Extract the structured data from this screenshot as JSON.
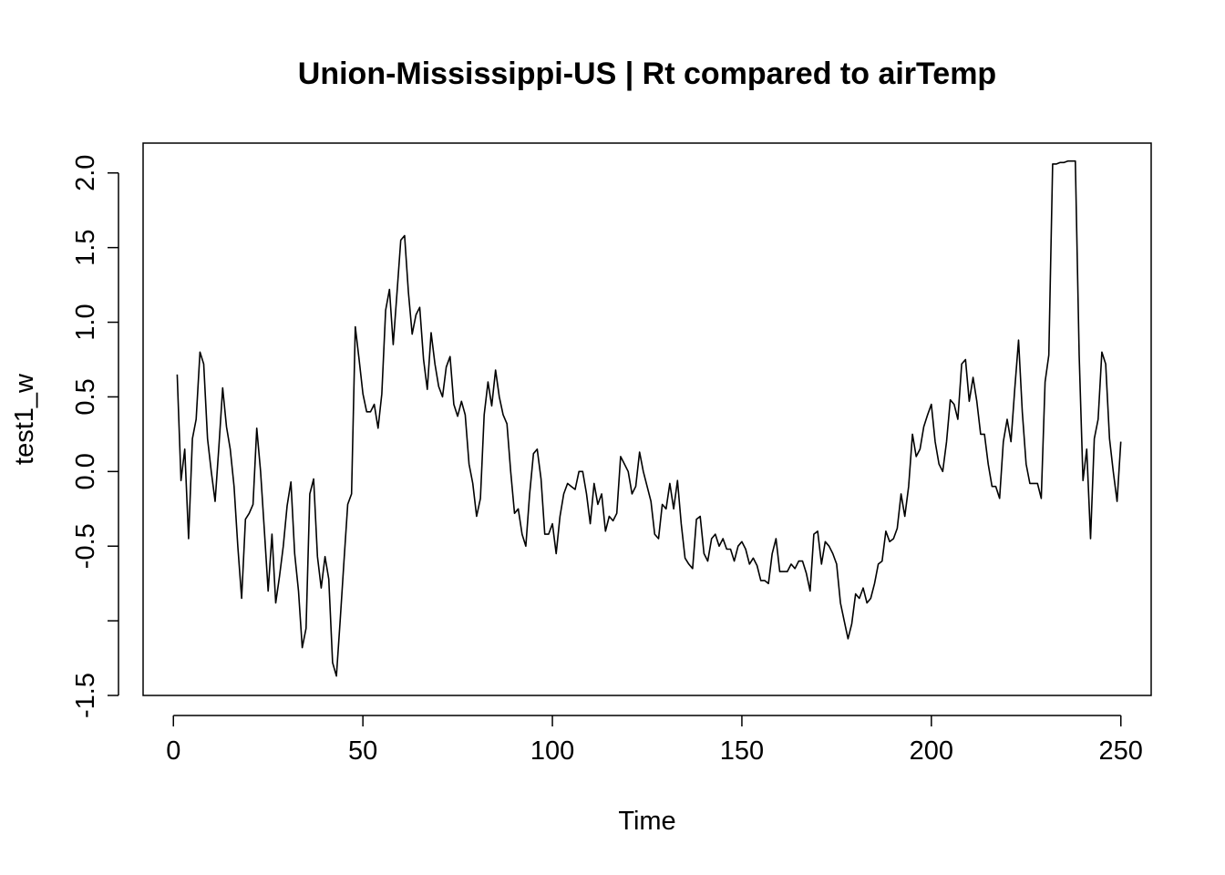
{
  "chart_data": {
    "type": "line",
    "title": "Union-Mississippi-US | Rt compared to airTemp",
    "xlabel": "Time",
    "ylabel": "test1_w",
    "xlim": [
      -8,
      258
    ],
    "ylim": [
      -1.5,
      2.2
    ],
    "x_ticks": [
      0,
      50,
      100,
      150,
      200,
      250
    ],
    "y_ticks": [
      -1.5,
      -1.0,
      -0.5,
      0.0,
      0.5,
      1.0,
      1.5,
      2.0
    ],
    "x_tick_labels": [
      "0",
      "50",
      "100",
      "150",
      "200",
      "250"
    ],
    "y_tick_labels": [
      "-1.5",
      "",
      "-0.5",
      "0.0",
      "0.5",
      "1.0",
      "1.5",
      "2.0"
    ],
    "grid": false,
    "series": [
      {
        "color": "#000000",
        "x_start": 1,
        "values": [
          0.65,
          -0.06,
          0.15,
          -0.45,
          0.22,
          0.35,
          0.8,
          0.72,
          0.22,
          0.0,
          -0.2,
          0.17,
          0.56,
          0.3,
          0.15,
          -0.1,
          -0.5,
          -0.85,
          -0.32,
          -0.28,
          -0.22,
          0.29,
          0.0,
          -0.4,
          -0.8,
          -0.42,
          -0.88,
          -0.7,
          -0.5,
          -0.23,
          -0.07,
          -0.55,
          -0.8,
          -1.18,
          -1.05,
          -0.15,
          -0.05,
          -0.57,
          -0.78,
          -0.57,
          -0.72,
          -1.28,
          -1.37,
          -1.0,
          -0.6,
          -0.22,
          -0.15,
          0.97,
          0.75,
          0.52,
          0.4,
          0.4,
          0.45,
          0.29,
          0.52,
          1.08,
          1.22,
          0.85,
          1.2,
          1.55,
          1.58,
          1.2,
          0.92,
          1.05,
          1.1,
          0.75,
          0.55,
          0.93,
          0.72,
          0.57,
          0.5,
          0.7,
          0.77,
          0.45,
          0.37,
          0.47,
          0.38,
          0.05,
          -0.08,
          -0.3,
          -0.18,
          0.38,
          0.6,
          0.44,
          0.68,
          0.5,
          0.38,
          0.32,
          0.0,
          -0.28,
          -0.25,
          -0.42,
          -0.5,
          -0.15,
          0.12,
          0.15,
          -0.05,
          -0.42,
          -0.42,
          -0.35,
          -0.55,
          -0.3,
          -0.15,
          -0.08,
          -0.1,
          -0.12,
          0.0,
          0.0,
          -0.15,
          -0.35,
          -0.08,
          -0.22,
          -0.15,
          -0.4,
          -0.3,
          -0.33,
          -0.28,
          0.1,
          0.05,
          0.0,
          -0.15,
          -0.1,
          0.13,
          0.0,
          -0.1,
          -0.2,
          -0.42,
          -0.45,
          -0.22,
          -0.25,
          -0.08,
          -0.25,
          -0.06,
          -0.35,
          -0.58,
          -0.62,
          -0.65,
          -0.32,
          -0.3,
          -0.55,
          -0.6,
          -0.45,
          -0.42,
          -0.5,
          -0.45,
          -0.52,
          -0.52,
          -0.6,
          -0.5,
          -0.47,
          -0.52,
          -0.62,
          -0.58,
          -0.63,
          -0.73,
          -0.73,
          -0.75,
          -0.55,
          -0.45,
          -0.67,
          -0.67,
          -0.67,
          -0.62,
          -0.65,
          -0.6,
          -0.6,
          -0.68,
          -0.8,
          -0.42,
          -0.4,
          -0.62,
          -0.47,
          -0.5,
          -0.55,
          -0.62,
          -0.88,
          -1.0,
          -1.12,
          -1.02,
          -0.82,
          -0.85,
          -0.78,
          -0.88,
          -0.85,
          -0.75,
          -0.62,
          -0.6,
          -0.4,
          -0.47,
          -0.45,
          -0.38,
          -0.15,
          -0.3,
          -0.1,
          0.25,
          0.1,
          0.15,
          0.3,
          0.38,
          0.45,
          0.2,
          0.05,
          0.0,
          0.2,
          0.48,
          0.45,
          0.35,
          0.72,
          0.75,
          0.47,
          0.63,
          0.47,
          0.25,
          0.25,
          0.05,
          -0.1,
          -0.1,
          -0.18,
          0.2,
          0.35,
          0.2,
          0.55,
          0.88,
          0.4,
          0.05,
          -0.08,
          -0.08,
          -0.08,
          -0.18,
          0.6,
          0.78,
          2.06,
          2.06,
          2.07,
          2.07,
          2.08,
          2.08,
          2.08,
          0.78,
          -0.06,
          0.15,
          -0.45,
          0.22,
          0.35,
          0.8,
          0.72,
          0.22,
          0.0,
          -0.2,
          0.2
        ]
      }
    ]
  }
}
